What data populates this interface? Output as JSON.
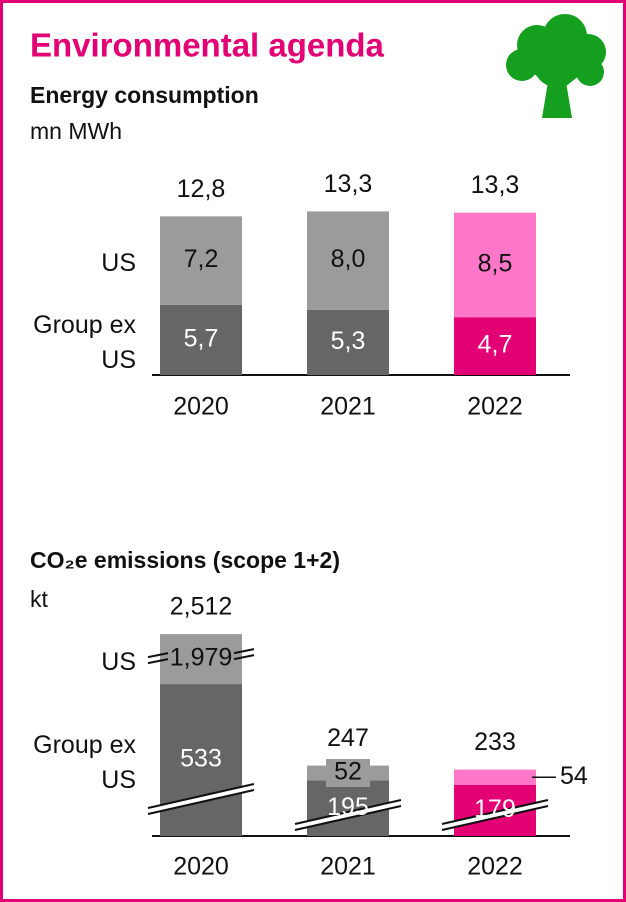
{
  "title": "Environmental agenda",
  "chart_data": [
    {
      "type": "stacked_bar",
      "title": "Energy consumption",
      "unit": "mn MWh",
      "categories": [
        "2020",
        "2021",
        "2022"
      ],
      "series": [
        {
          "name": "Group ex US",
          "colors": [
            "#666666",
            "#666666",
            "#e20074"
          ],
          "values": [
            5.7,
            5.3,
            4.7
          ],
          "value_labels": [
            "5,7",
            "5,3",
            "4,7"
          ]
        },
        {
          "name": "US",
          "colors": [
            "#9b9b9b",
            "#9b9b9b",
            "#ff77c8"
          ],
          "values": [
            7.2,
            8.0,
            8.5
          ],
          "value_labels": [
            "7,2",
            "8,0",
            "8,5"
          ]
        }
      ],
      "totals": [
        12.8,
        13.3,
        13.3
      ],
      "total_labels": [
        "12,8",
        "13,3",
        "13,3"
      ]
    },
    {
      "type": "stacked_bar",
      "title": "CO₂e emissions (scope 1+2)",
      "unit": "kt",
      "categories": [
        "2020",
        "2021",
        "2022"
      ],
      "series": [
        {
          "name": "Group ex US",
          "colors": [
            "#666666",
            "#666666",
            "#e20074"
          ],
          "values": [
            533,
            195,
            179
          ],
          "value_labels": [
            "533",
            "195",
            "179"
          ]
        },
        {
          "name": "US",
          "colors": [
            "#9b9b9b",
            "#9b9b9b",
            "#ff77c8"
          ],
          "values": [
            1979,
            52,
            54
          ],
          "value_labels": [
            "1,979",
            "52",
            "54"
          ]
        }
      ],
      "totals": [
        2512,
        247,
        233
      ],
      "total_labels": [
        "2,512",
        "247",
        "233"
      ],
      "broken_axis": true
    }
  ]
}
